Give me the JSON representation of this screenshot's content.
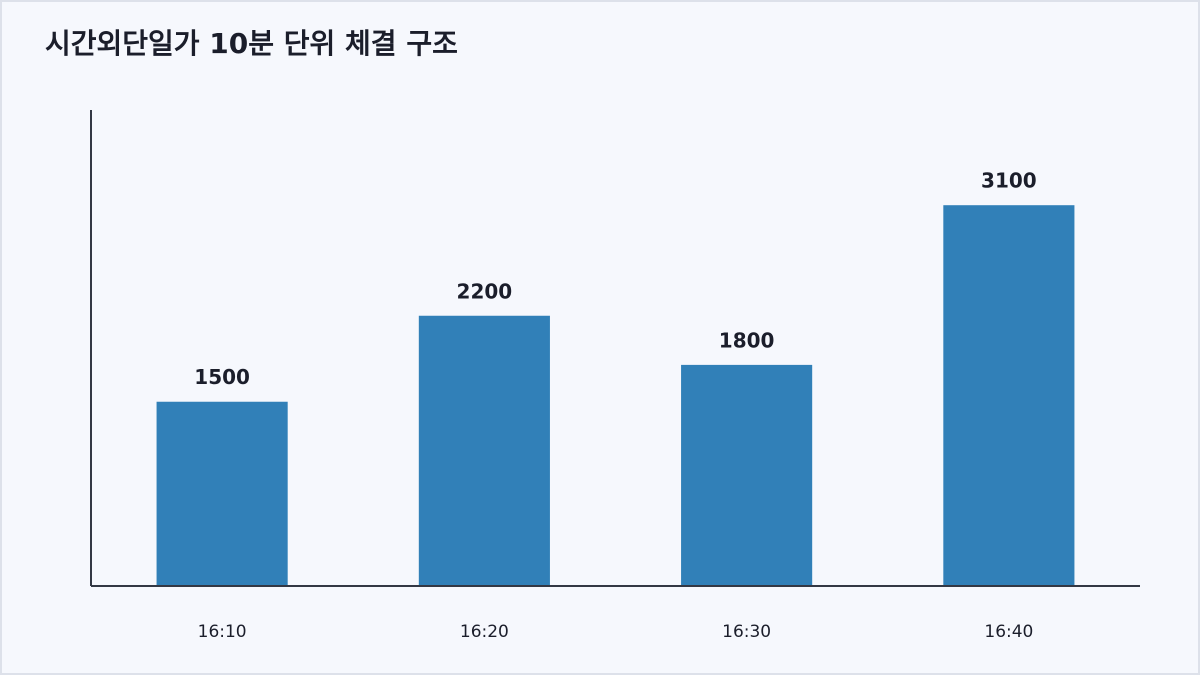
{
  "chart_data": {
    "type": "bar",
    "title": "시간외단일가 10분 단위 체결 구조",
    "categories": [
      "16:10",
      "16:20",
      "16:30",
      "16:40"
    ],
    "values": [
      1500,
      2200,
      1800,
      3100
    ],
    "color": "#3180b8",
    "ylim": [
      0,
      3875
    ]
  }
}
